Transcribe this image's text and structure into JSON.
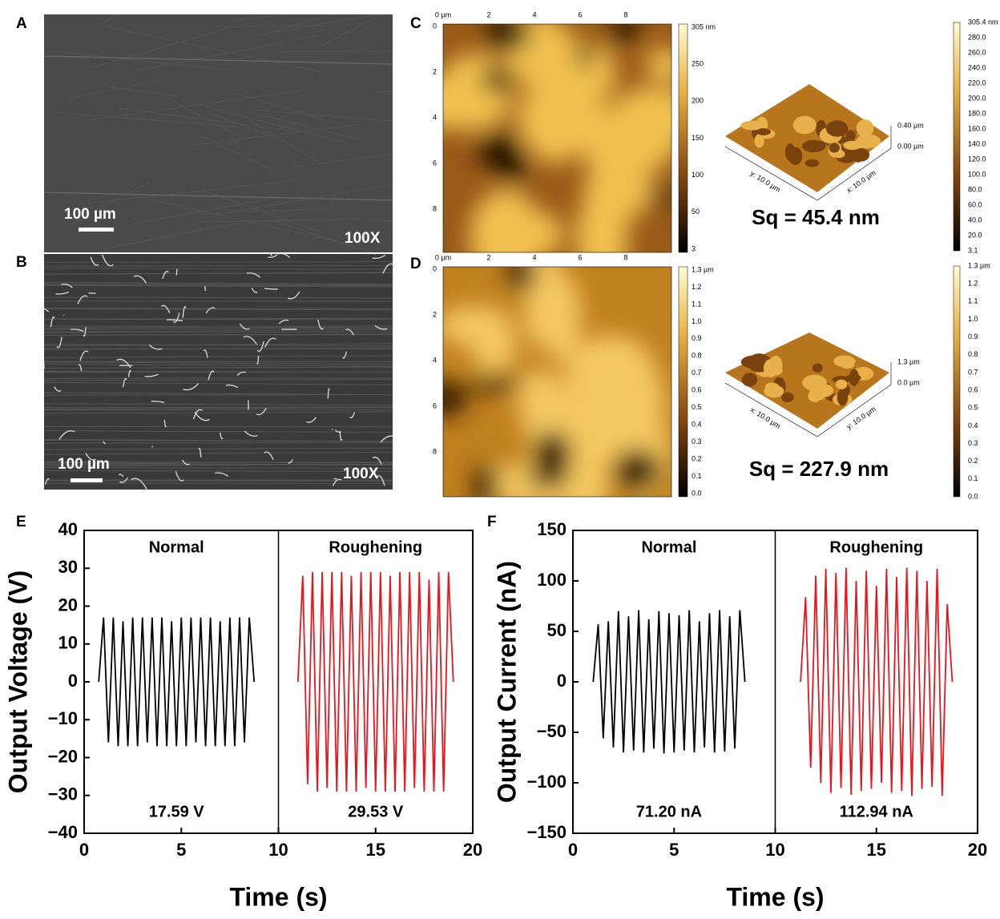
{
  "panels": {
    "labels": [
      "A",
      "B",
      "C",
      "D",
      "E",
      "F"
    ],
    "sem": [
      {
        "scale": "100 µm",
        "mag": "100X"
      },
      {
        "scale": "100 µm",
        "mag": "100X"
      }
    ],
    "afm": [
      {
        "x_ticks": [
          "0 µm",
          "2",
          "4",
          "6",
          "8"
        ],
        "y_ticks": [
          "0",
          "2",
          "4",
          "6",
          "8"
        ],
        "colorbar": [
          "305 nm",
          "250",
          "200",
          "150",
          "100",
          "50",
          "3"
        ],
        "z_labels": [
          "0.40 µm",
          "0.00 µm"
        ],
        "axis_labels": [
          "y: 10.0 µm",
          "x: 10.0 µm"
        ],
        "sq": "Sq = 45.4 nm",
        "scale": [
          "305.4 nm",
          "280.0",
          "260.0",
          "240.0",
          "220.0",
          "200.0",
          "180.0",
          "160.0",
          "140.0",
          "120.0",
          "100.0",
          "80.0",
          "60.0",
          "40.0",
          "20.0",
          "3.1"
        ]
      },
      {
        "x_ticks": [
          "0 µm",
          "2",
          "4",
          "6",
          "8"
        ],
        "y_ticks": [
          "0",
          "2",
          "4",
          "6",
          "8"
        ],
        "colorbar": [
          "1.3 µm",
          "1.2",
          "1.1",
          "1.0",
          "0.9",
          "0.8",
          "0.7",
          "0.6",
          "0.5",
          "0.4",
          "0.3",
          "0.2",
          "0.1",
          "0.0"
        ],
        "z_labels": [
          "1.3 µm",
          "0.0 µm"
        ],
        "axis_labels": [
          "x: 10.0 µm",
          "y: 10.0 µm"
        ],
        "sq": "Sq = 227.9 nm",
        "scale": [
          "1.3 µm",
          "1.2",
          "1.1",
          "1.0",
          "0.9",
          "0.8",
          "0.7",
          "0.6",
          "0.5",
          "0.4",
          "0.3",
          "0.2",
          "0.1",
          "0.0"
        ]
      }
    ]
  },
  "chart_data": [
    {
      "type": "line",
      "x_label": "Time (s)",
      "y_label": "Output Voltage (V)",
      "xlim": [
        0,
        20
      ],
      "xticks": [
        0,
        5,
        10,
        15,
        20
      ],
      "ylim": [
        -40,
        40
      ],
      "yticks": [
        {
          "value": -40,
          "label": "−40"
        },
        {
          "value": -30,
          "label": "−30"
        },
        {
          "value": -20,
          "label": "−20"
        },
        {
          "value": -10,
          "label": "−10"
        },
        0,
        10,
        20,
        30,
        40
      ],
      "separator_x": 10,
      "series": [
        {
          "name": "Normal",
          "color": "#000000",
          "annotation": "17.59 V",
          "x": [
            0.75,
            1,
            1.25,
            1.5,
            1.75,
            2,
            2.25,
            2.5,
            2.75,
            3,
            3.25,
            3.5,
            3.75,
            4,
            4.25,
            4.5,
            4.75,
            5,
            5.25,
            5.5,
            5.75,
            6,
            6.25,
            6.5,
            6.75,
            7,
            7.25,
            7.5,
            7.75,
            8,
            8.25,
            8.5,
            8.75
          ],
          "values": [
            0,
            17,
            -16,
            17,
            -17,
            16,
            -17,
            17,
            -17,
            17,
            -16,
            17,
            -17,
            17,
            -17,
            16,
            -17,
            17,
            -17,
            17,
            -16,
            17,
            -17,
            17,
            -17,
            16,
            -17,
            17,
            -17,
            17,
            -16,
            17,
            0
          ]
        },
        {
          "name": "Roughening",
          "color": "#e8151b",
          "annotation": "29.53 V",
          "x": [
            11,
            11.25,
            11.5,
            11.75,
            12,
            12.25,
            12.5,
            12.75,
            13,
            13.25,
            13.5,
            13.75,
            14,
            14.25,
            14.5,
            14.75,
            15,
            15.25,
            15.5,
            15.75,
            16,
            16.25,
            16.5,
            16.75,
            17,
            17.25,
            17.5,
            17.75,
            18,
            18.25,
            18.5,
            18.75,
            19
          ],
          "values": [
            0,
            28,
            -27,
            29,
            -29,
            29,
            -28,
            29,
            -29,
            29,
            -29,
            28,
            -29,
            29,
            -28,
            29,
            -29,
            29,
            -29,
            28,
            -29,
            29,
            -29,
            29,
            -28,
            29,
            -29,
            27,
            -29,
            29,
            -29,
            29,
            0
          ]
        }
      ]
    },
    {
      "type": "line",
      "x_label": "Time (s)",
      "y_label": "Output Current (nA)",
      "xlim": [
        0,
        20
      ],
      "xticks": [
        0,
        5,
        10,
        15,
        20
      ],
      "ylim": [
        -150,
        150
      ],
      "yticks": [
        {
          "value": -150,
          "label": "−150"
        },
        {
          "value": -100,
          "label": "−100"
        },
        {
          "value": -50,
          "label": "−50"
        },
        0,
        50,
        100,
        150
      ],
      "separator_x": 10,
      "series": [
        {
          "name": "Normal",
          "color": "#000000",
          "annotation": "71.20 nA",
          "x": [
            1,
            1.25,
            1.5,
            1.75,
            2,
            2.25,
            2.5,
            2.75,
            3,
            3.25,
            3.5,
            3.75,
            4,
            4.25,
            4.5,
            4.75,
            5,
            5.25,
            5.5,
            5.75,
            6,
            6.25,
            6.5,
            6.75,
            7,
            7.25,
            7.5,
            7.75,
            8,
            8.25,
            8.5
          ],
          "values": [
            0,
            57,
            -56,
            60,
            -65,
            70,
            -70,
            65,
            -68,
            71,
            -70,
            62,
            -66,
            70,
            -71,
            68,
            -70,
            66,
            -68,
            71,
            -70,
            60,
            -65,
            68,
            -70,
            71,
            -69,
            65,
            -66,
            71,
            0
          ]
        },
        {
          "name": "Roughening",
          "color": "#e8151b",
          "annotation": "112.94 nA",
          "x": [
            11.25,
            11.5,
            11.75,
            12,
            12.25,
            12.5,
            12.75,
            13,
            13.25,
            13.5,
            13.75,
            14,
            14.25,
            14.5,
            14.75,
            15,
            15.25,
            15.5,
            15.75,
            16,
            16.25,
            16.5,
            16.75,
            17,
            17.25,
            17.5,
            17.75,
            18,
            18.25,
            18.5,
            18.75
          ],
          "values": [
            0,
            84,
            -85,
            105,
            -100,
            112,
            -110,
            108,
            -105,
            113,
            -112,
            100,
            -108,
            110,
            -106,
            95,
            -100,
            112,
            -110,
            104,
            -108,
            113,
            -113,
            110,
            -106,
            100,
            -104,
            112,
            -113,
            77,
            0
          ]
        }
      ]
    }
  ]
}
